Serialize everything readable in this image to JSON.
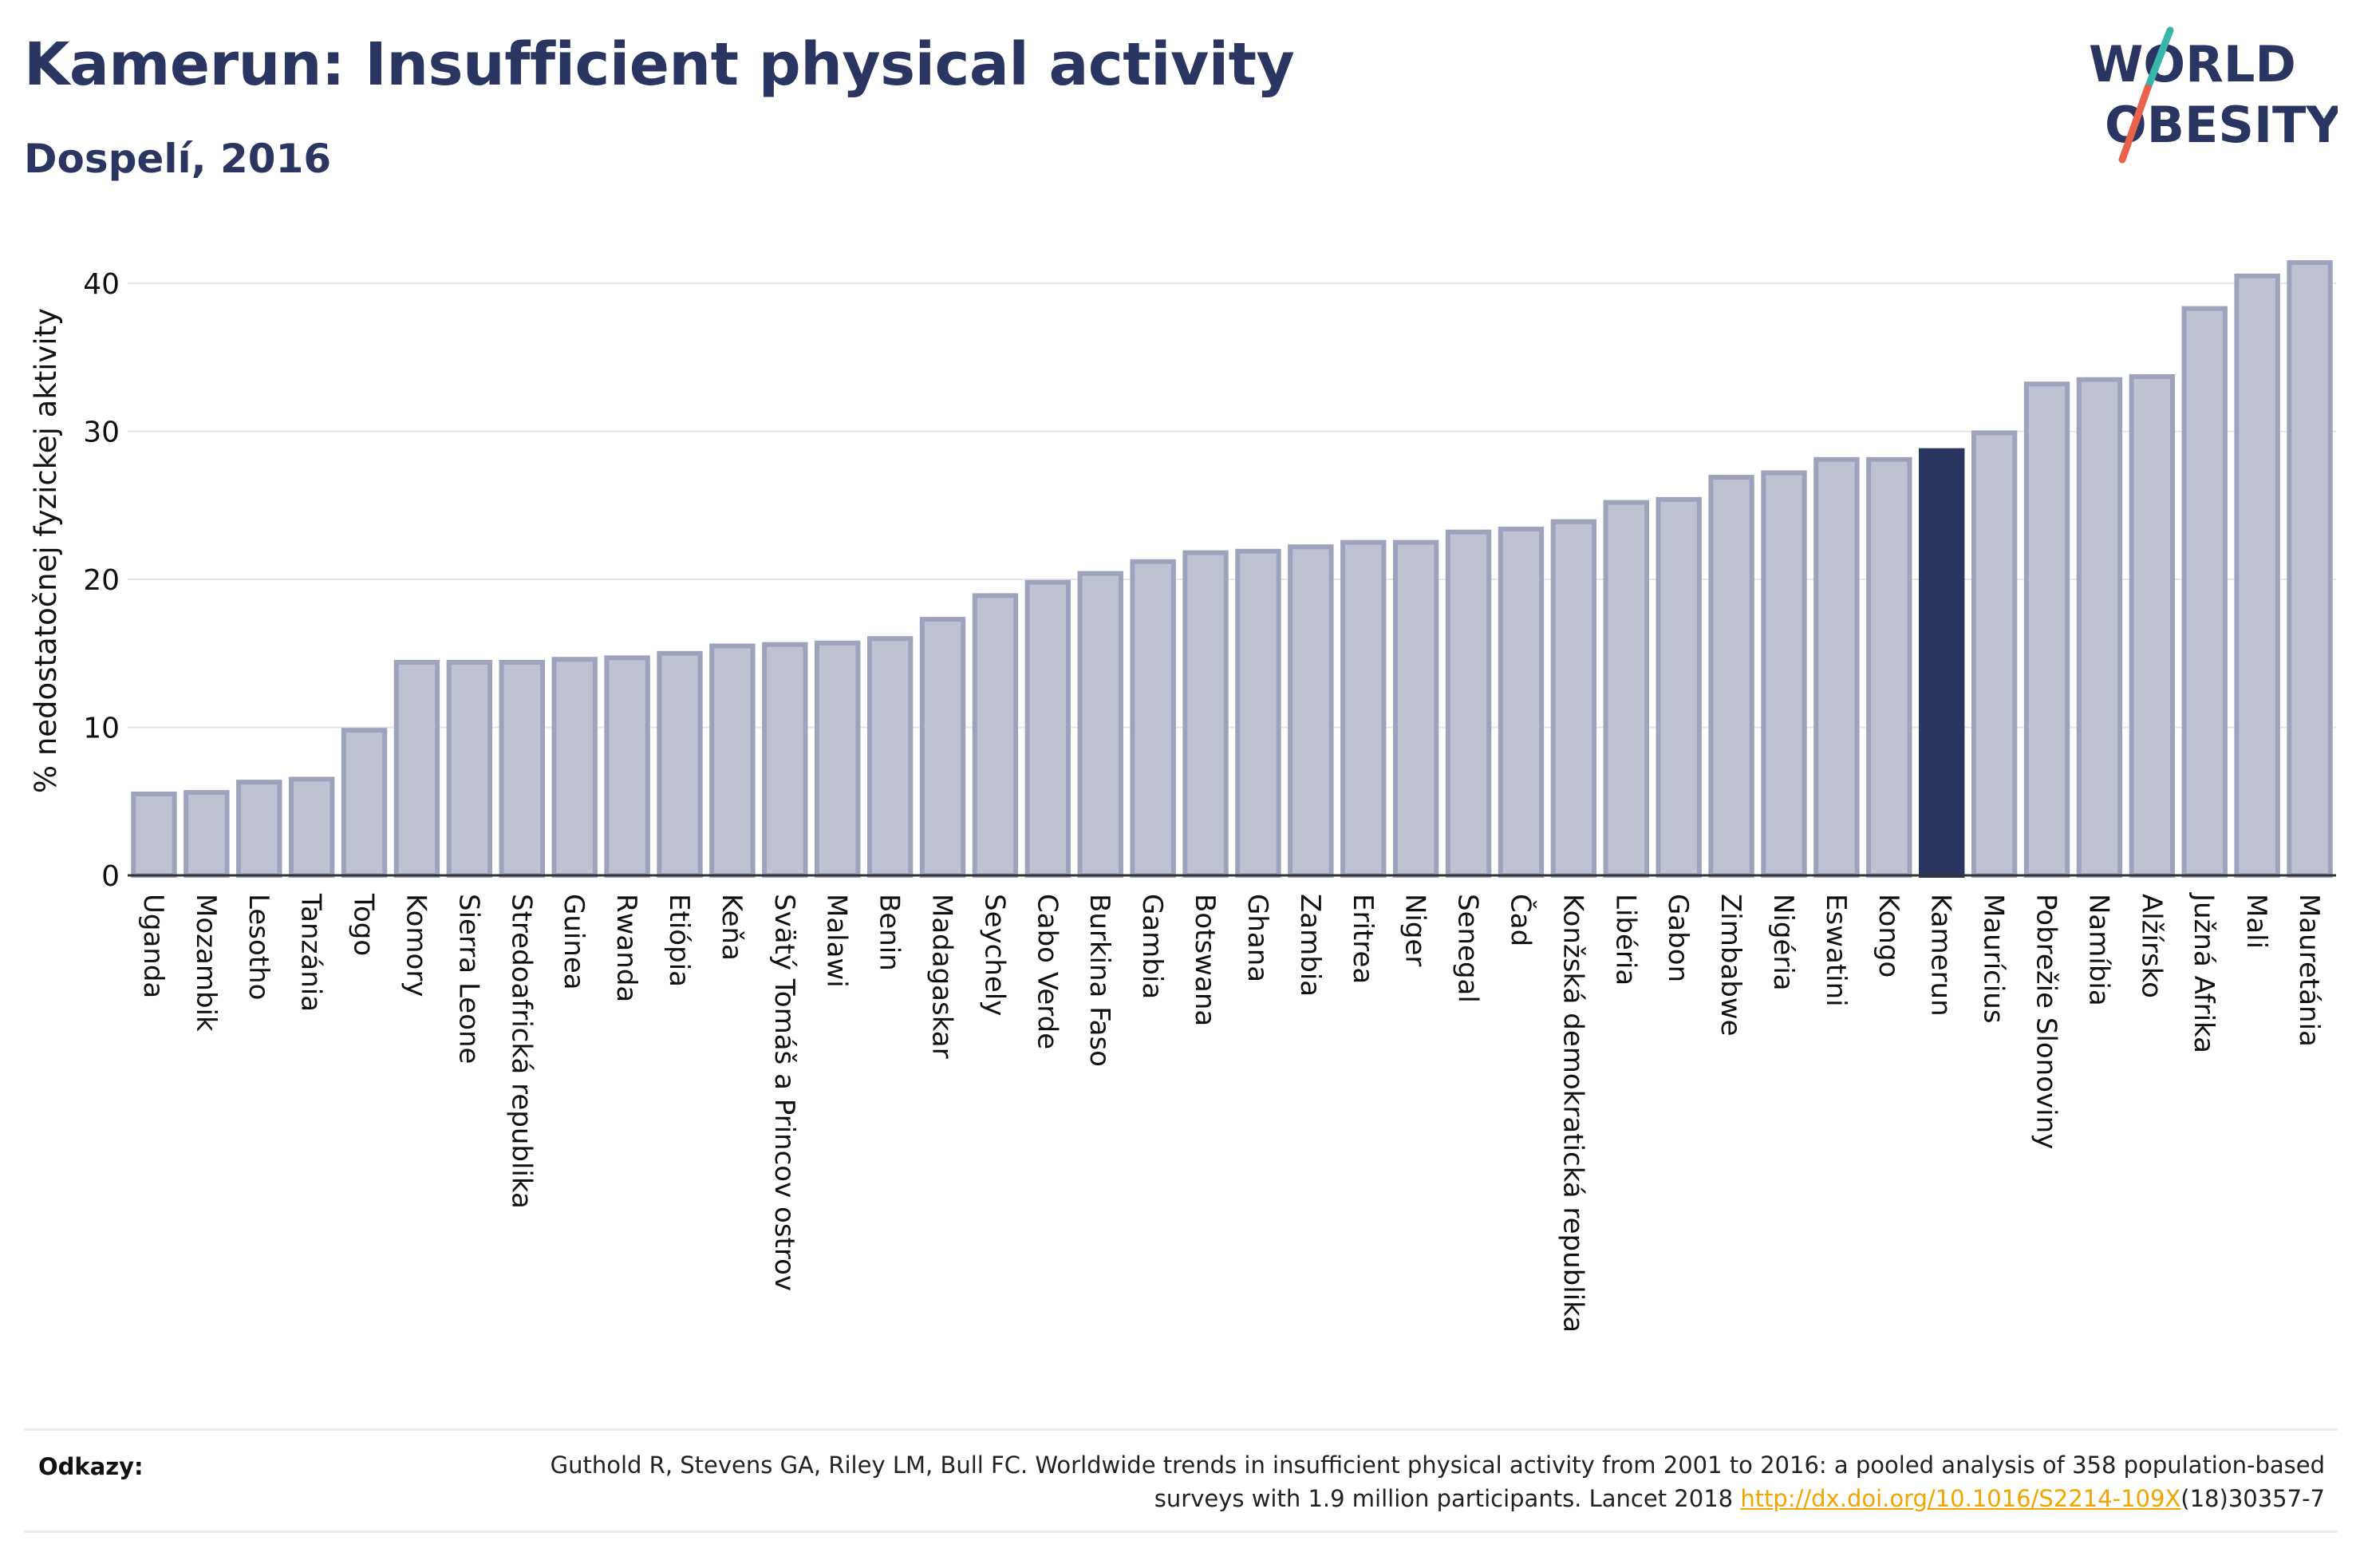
{
  "title": "Kamerun: Insufficient physical activity",
  "subtitle": "Dospelí, 2016",
  "logo": {
    "line1": "WORLD",
    "line2": "OBESITY",
    "colors": {
      "text": "#2b3561",
      "slash_top": "#38b6ab",
      "slash_bottom": "#e8634a"
    }
  },
  "colors": {
    "bar_fill": "#bfc2d0",
    "bar_stroke": "#9ea3bd",
    "highlight": "#2b3561",
    "grid": "#e6e6e6",
    "axis_text": "#111111"
  },
  "chart_data": {
    "type": "bar",
    "title": "Kamerun: Insufficient physical activity",
    "subtitle": "Dospelí, 2016",
    "ylabel": "% nedostatočnej fyzickej aktivity",
    "ylim": [
      0,
      42
    ],
    "yticks": [
      0,
      10,
      20,
      30,
      40
    ],
    "grid": true,
    "highlight": "Kamerun",
    "categories": [
      "Uganda",
      "Mozambik",
      "Lesotho",
      "Tanzánia",
      "Togo",
      "Komory",
      "Sierra Leone",
      "Stredoafrická republika",
      "Guinea",
      "Rwanda",
      "Etiópia",
      "Keňa",
      "Svätý Tomáš a Princov ostrov",
      "Malawi",
      "Benin",
      "Madagaskar",
      "Seychely",
      "Cabo Verde",
      "Burkina Faso",
      "Gambia",
      "Botswana",
      "Ghana",
      "Zambia",
      "Eritrea",
      "Niger",
      "Senegal",
      "Čad",
      "Konžská demokratická republika",
      "Libéria",
      "Gabon",
      "Zimbabwe",
      "Nigéria",
      "Eswatini",
      "Kongo",
      "Kamerun",
      "Maurícius",
      "Pobrežie Slonoviny",
      "Namíbia",
      "Alžírsko",
      "Južná Afrika",
      "Mali",
      "Mauretánia"
    ],
    "values": [
      5.5,
      5.6,
      6.3,
      6.5,
      9.8,
      14.4,
      14.4,
      14.4,
      14.6,
      14.7,
      15.0,
      15.5,
      15.6,
      15.7,
      16.0,
      17.3,
      18.9,
      19.8,
      20.4,
      21.2,
      21.8,
      21.9,
      22.2,
      22.5,
      22.5,
      23.2,
      23.4,
      23.9,
      25.2,
      25.4,
      26.9,
      27.2,
      28.1,
      28.1,
      28.7,
      29.9,
      33.2,
      33.5,
      33.7,
      38.3,
      40.5,
      41.4
    ]
  },
  "references": {
    "label": "Odkazy:",
    "text_before_link": "Guthold R, Stevens GA, Riley LM, Bull FC. Worldwide trends in insufficient physical activity from 2001 to 2016: a pooled analysis of 358 population-based surveys with 1.9 million participants. Lancet 2018 ",
    "link": "http://dx.doi.org/10.1016/S2214-109X",
    "text_after_link": "(18)30357-7"
  }
}
